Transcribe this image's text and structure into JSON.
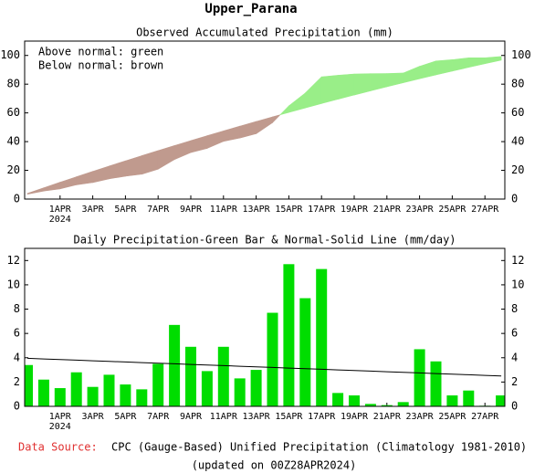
{
  "title": "Upper_Parana",
  "chart_data": [
    {
      "type": "area",
      "title": "Observed Accumulated Precipitation (mm)",
      "annotations": [
        "Above normal: green",
        "Below normal: brown"
      ],
      "categories": [
        null,
        null,
        "1APR",
        null,
        "3APR",
        null,
        "5APR",
        null,
        "7APR",
        null,
        "9APR",
        null,
        "11APR",
        null,
        "13APR",
        null,
        "15APR",
        null,
        "17APR",
        null,
        "19APR",
        null,
        "21APR",
        null,
        "23APR",
        null,
        "25APR",
        null,
        "27APR",
        null
      ],
      "year_label": "2024",
      "above_color": "#99ee88",
      "below_color": "#c09a8e",
      "series": [
        {
          "values": [
            3.4,
            5.6,
            7.1,
            9.9,
            11.5,
            14.1,
            15.9,
            17.3,
            20.8,
            27.5,
            32.4,
            35.3,
            40.2,
            42.5,
            45.5,
            53.2,
            64.9,
            73.8,
            85.1,
            86.2,
            87.1,
            87.3,
            87.4,
            87.75,
            92.45,
            96.15,
            97.05,
            98.35,
            98.4,
            99.3
          ]
        },
        {
          "values": [
            3.95,
            7.85,
            11.7,
            15.5,
            19.25,
            22.95,
            26.6,
            30.2,
            33.75,
            37.25,
            40.7,
            44.1,
            47.45,
            50.75,
            54.0,
            57.2,
            60.35,
            63.45,
            66.5,
            69.5,
            72.45,
            75.35,
            78.2,
            81.0,
            83.75,
            86.45,
            89.1,
            91.7,
            94.25,
            96.75
          ]
        }
      ],
      "ylim": [
        0,
        110
      ],
      "yticks": [
        0,
        20,
        40,
        60,
        80,
        100
      ]
    },
    {
      "type": "bar",
      "title": "Daily Precipitation-Green Bar & Normal-Solid Line (mm/day)",
      "categories": [
        null,
        null,
        "1APR",
        null,
        "3APR",
        null,
        "5APR",
        null,
        "7APR",
        null,
        "9APR",
        null,
        "11APR",
        null,
        "13APR",
        null,
        "15APR",
        null,
        "17APR",
        null,
        "19APR",
        null,
        "21APR",
        null,
        "23APR",
        null,
        "25APR",
        null,
        "27APR",
        null
      ],
      "year_label": "2024",
      "series": [
        {
          "kind": "bar",
          "color": "#00dd00",
          "values": [
            3.4,
            2.2,
            1.5,
            2.8,
            1.6,
            2.6,
            1.8,
            1.4,
            3.5,
            6.7,
            4.9,
            2.9,
            4.9,
            2.3,
            3.0,
            7.7,
            11.7,
            8.9,
            11.3,
            1.1,
            0.9,
            0.2,
            0.1,
            0.35,
            4.7,
            3.7,
            0.9,
            1.3,
            0.05,
            0.9
          ]
        },
        {
          "kind": "line",
          "color": "#000000",
          "values": [
            3.95,
            3.9,
            3.85,
            3.8,
            3.75,
            3.7,
            3.65,
            3.6,
            3.55,
            3.5,
            3.45,
            3.4,
            3.35,
            3.3,
            3.25,
            3.2,
            3.15,
            3.1,
            3.05,
            3.0,
            2.95,
            2.9,
            2.85,
            2.8,
            2.75,
            2.7,
            2.65,
            2.6,
            2.55,
            2.5
          ]
        }
      ],
      "ylim": [
        0,
        13
      ],
      "yticks": [
        0,
        2,
        4,
        6,
        8,
        10,
        12
      ]
    }
  ],
  "source_label": "Data Source:",
  "source": "CPC (Gauge-Based) Unified Precipitation (Climatology 1981-2010)",
  "updated": "(updated on 00Z28APR2024)"
}
